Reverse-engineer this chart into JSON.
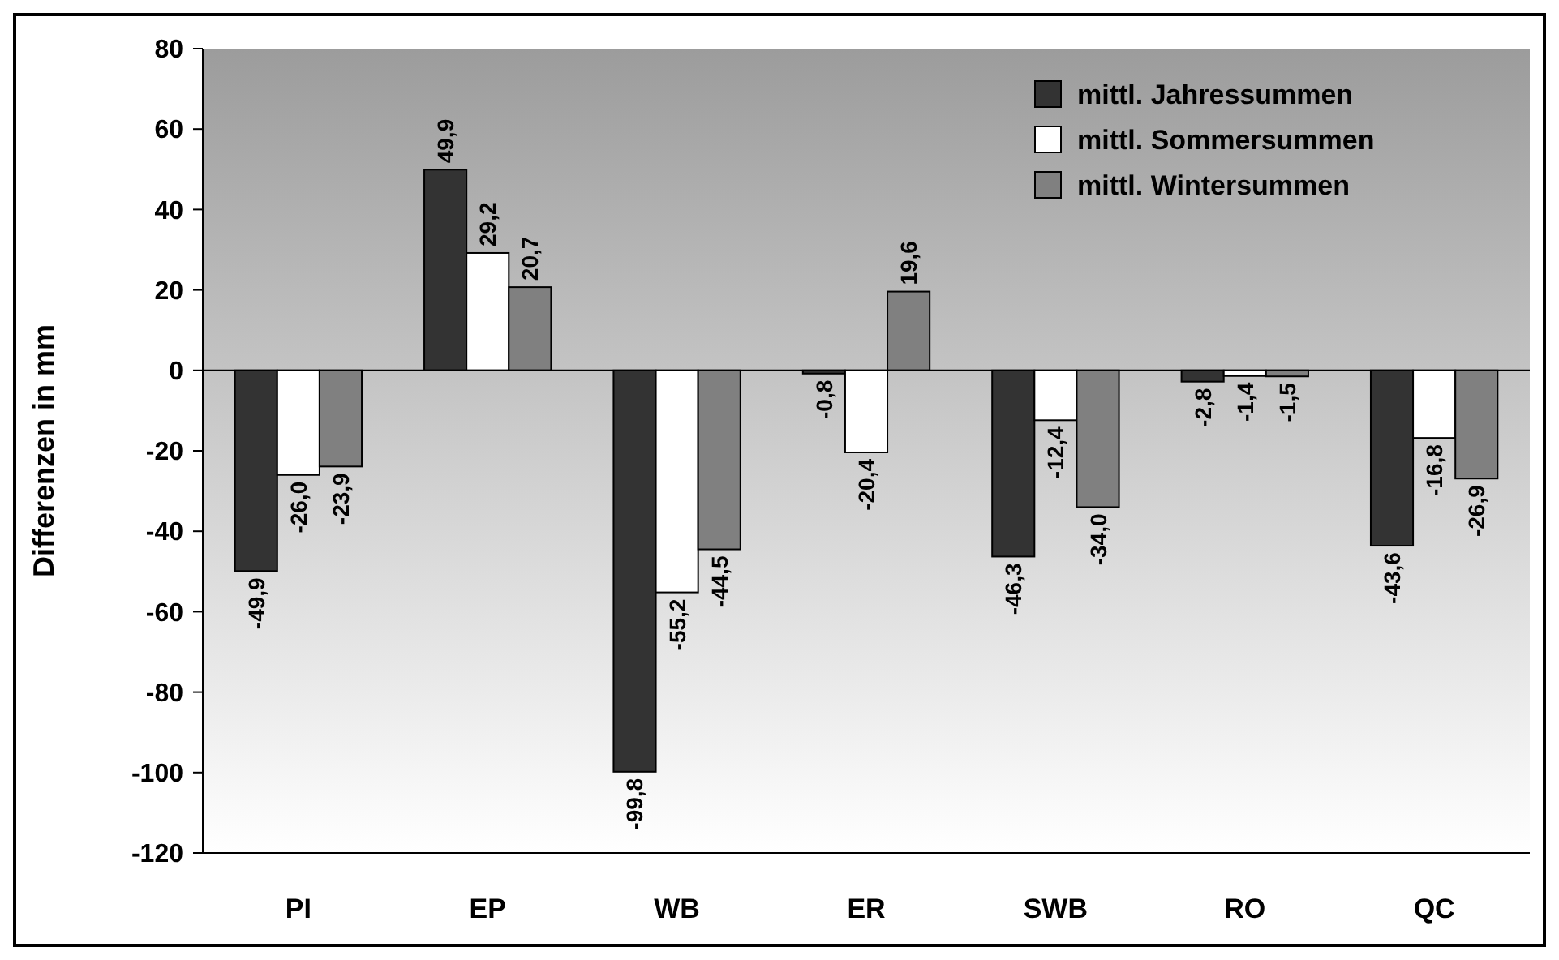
{
  "chart_data": {
    "type": "bar",
    "ylabel": "Differenzen in mm",
    "categories": [
      "PI",
      "EP",
      "WB",
      "ER",
      "SWB",
      "RO",
      "QC"
    ],
    "series": [
      {
        "name": "mittl. Jahressummen",
        "color": "#333333",
        "values": [
          -49.9,
          49.9,
          -99.8,
          -0.8,
          -46.3,
          -2.8,
          -43.6
        ],
        "value_labels": [
          "-49,9",
          "49,9",
          "-99,8",
          "-0,8",
          "-46,3",
          "-2,8",
          "-43,6"
        ]
      },
      {
        "name": "mittl. Sommersummen",
        "color": "#ffffff",
        "values": [
          -26.0,
          29.2,
          -55.2,
          -20.4,
          -12.4,
          -1.4,
          -16.8
        ],
        "value_labels": [
          "-26,0",
          "29,2",
          "-55,2",
          "-20,4",
          "-12,4",
          "-1,4",
          "-16,8"
        ]
      },
      {
        "name": "mittl. Wintersummen",
        "color": "#808080",
        "values": [
          -23.9,
          20.7,
          -44.5,
          19.6,
          -34.0,
          -1.5,
          -26.9
        ],
        "value_labels": [
          "-23,9",
          "20,7",
          "-44,5",
          "19,6",
          "-34,0",
          "-1,5",
          "-26,9"
        ]
      }
    ],
    "ylim": [
      -120,
      80
    ],
    "yticks": [
      -120,
      -100,
      -80,
      -60,
      -40,
      -20,
      0,
      20,
      40,
      60,
      80
    ],
    "legend": "top right"
  }
}
